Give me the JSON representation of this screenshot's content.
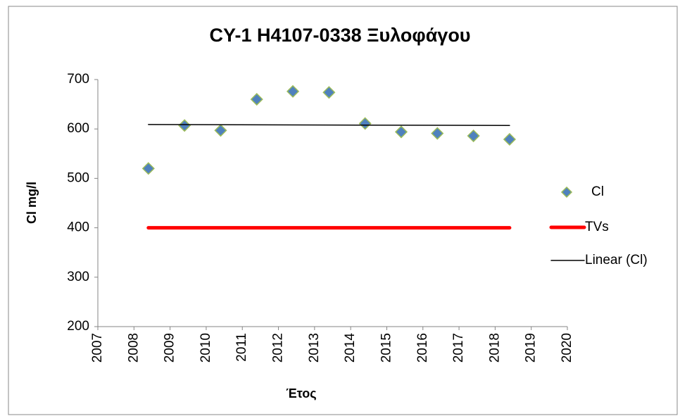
{
  "chart_data": {
    "type": "scatter",
    "title": "CY-1 H4107-0338 Ξυλοφάγου",
    "x_label": "Έτος",
    "y_label": "Cl mg/l",
    "xlim": [
      2007,
      2020
    ],
    "xticks": [
      2007,
      2008,
      2009,
      2010,
      2011,
      2012,
      2013,
      2014,
      2015,
      2016,
      2017,
      2018,
      2019,
      2020
    ],
    "ylim": [
      200,
      700
    ],
    "yticks": [
      200,
      300,
      400,
      500,
      600,
      700
    ],
    "grid": false,
    "legend": "right",
    "series": [
      {
        "name": "Cl",
        "style": "marker",
        "color": "#4f81bd",
        "edge_color": "#9bbb59",
        "x": [
          2008.4,
          2009.4,
          2010.4,
          2011.4,
          2012.4,
          2013.4,
          2014.4,
          2015.4,
          2016.4,
          2017.4,
          2018.4
        ],
        "values": [
          520,
          607,
          597,
          660,
          676,
          674,
          611,
          594,
          591,
          586,
          579
        ]
      },
      {
        "name": "TVs",
        "style": "line",
        "color": "#ff0000",
        "width": 5,
        "x": [
          2008.4,
          2018.4
        ],
        "values": [
          400,
          400
        ]
      },
      {
        "name": "Linear (Cl)",
        "style": "line",
        "color": "#000000",
        "width": 1.5,
        "x": [
          2008.4,
          2018.4
        ],
        "values": [
          609,
          607
        ]
      }
    ]
  }
}
